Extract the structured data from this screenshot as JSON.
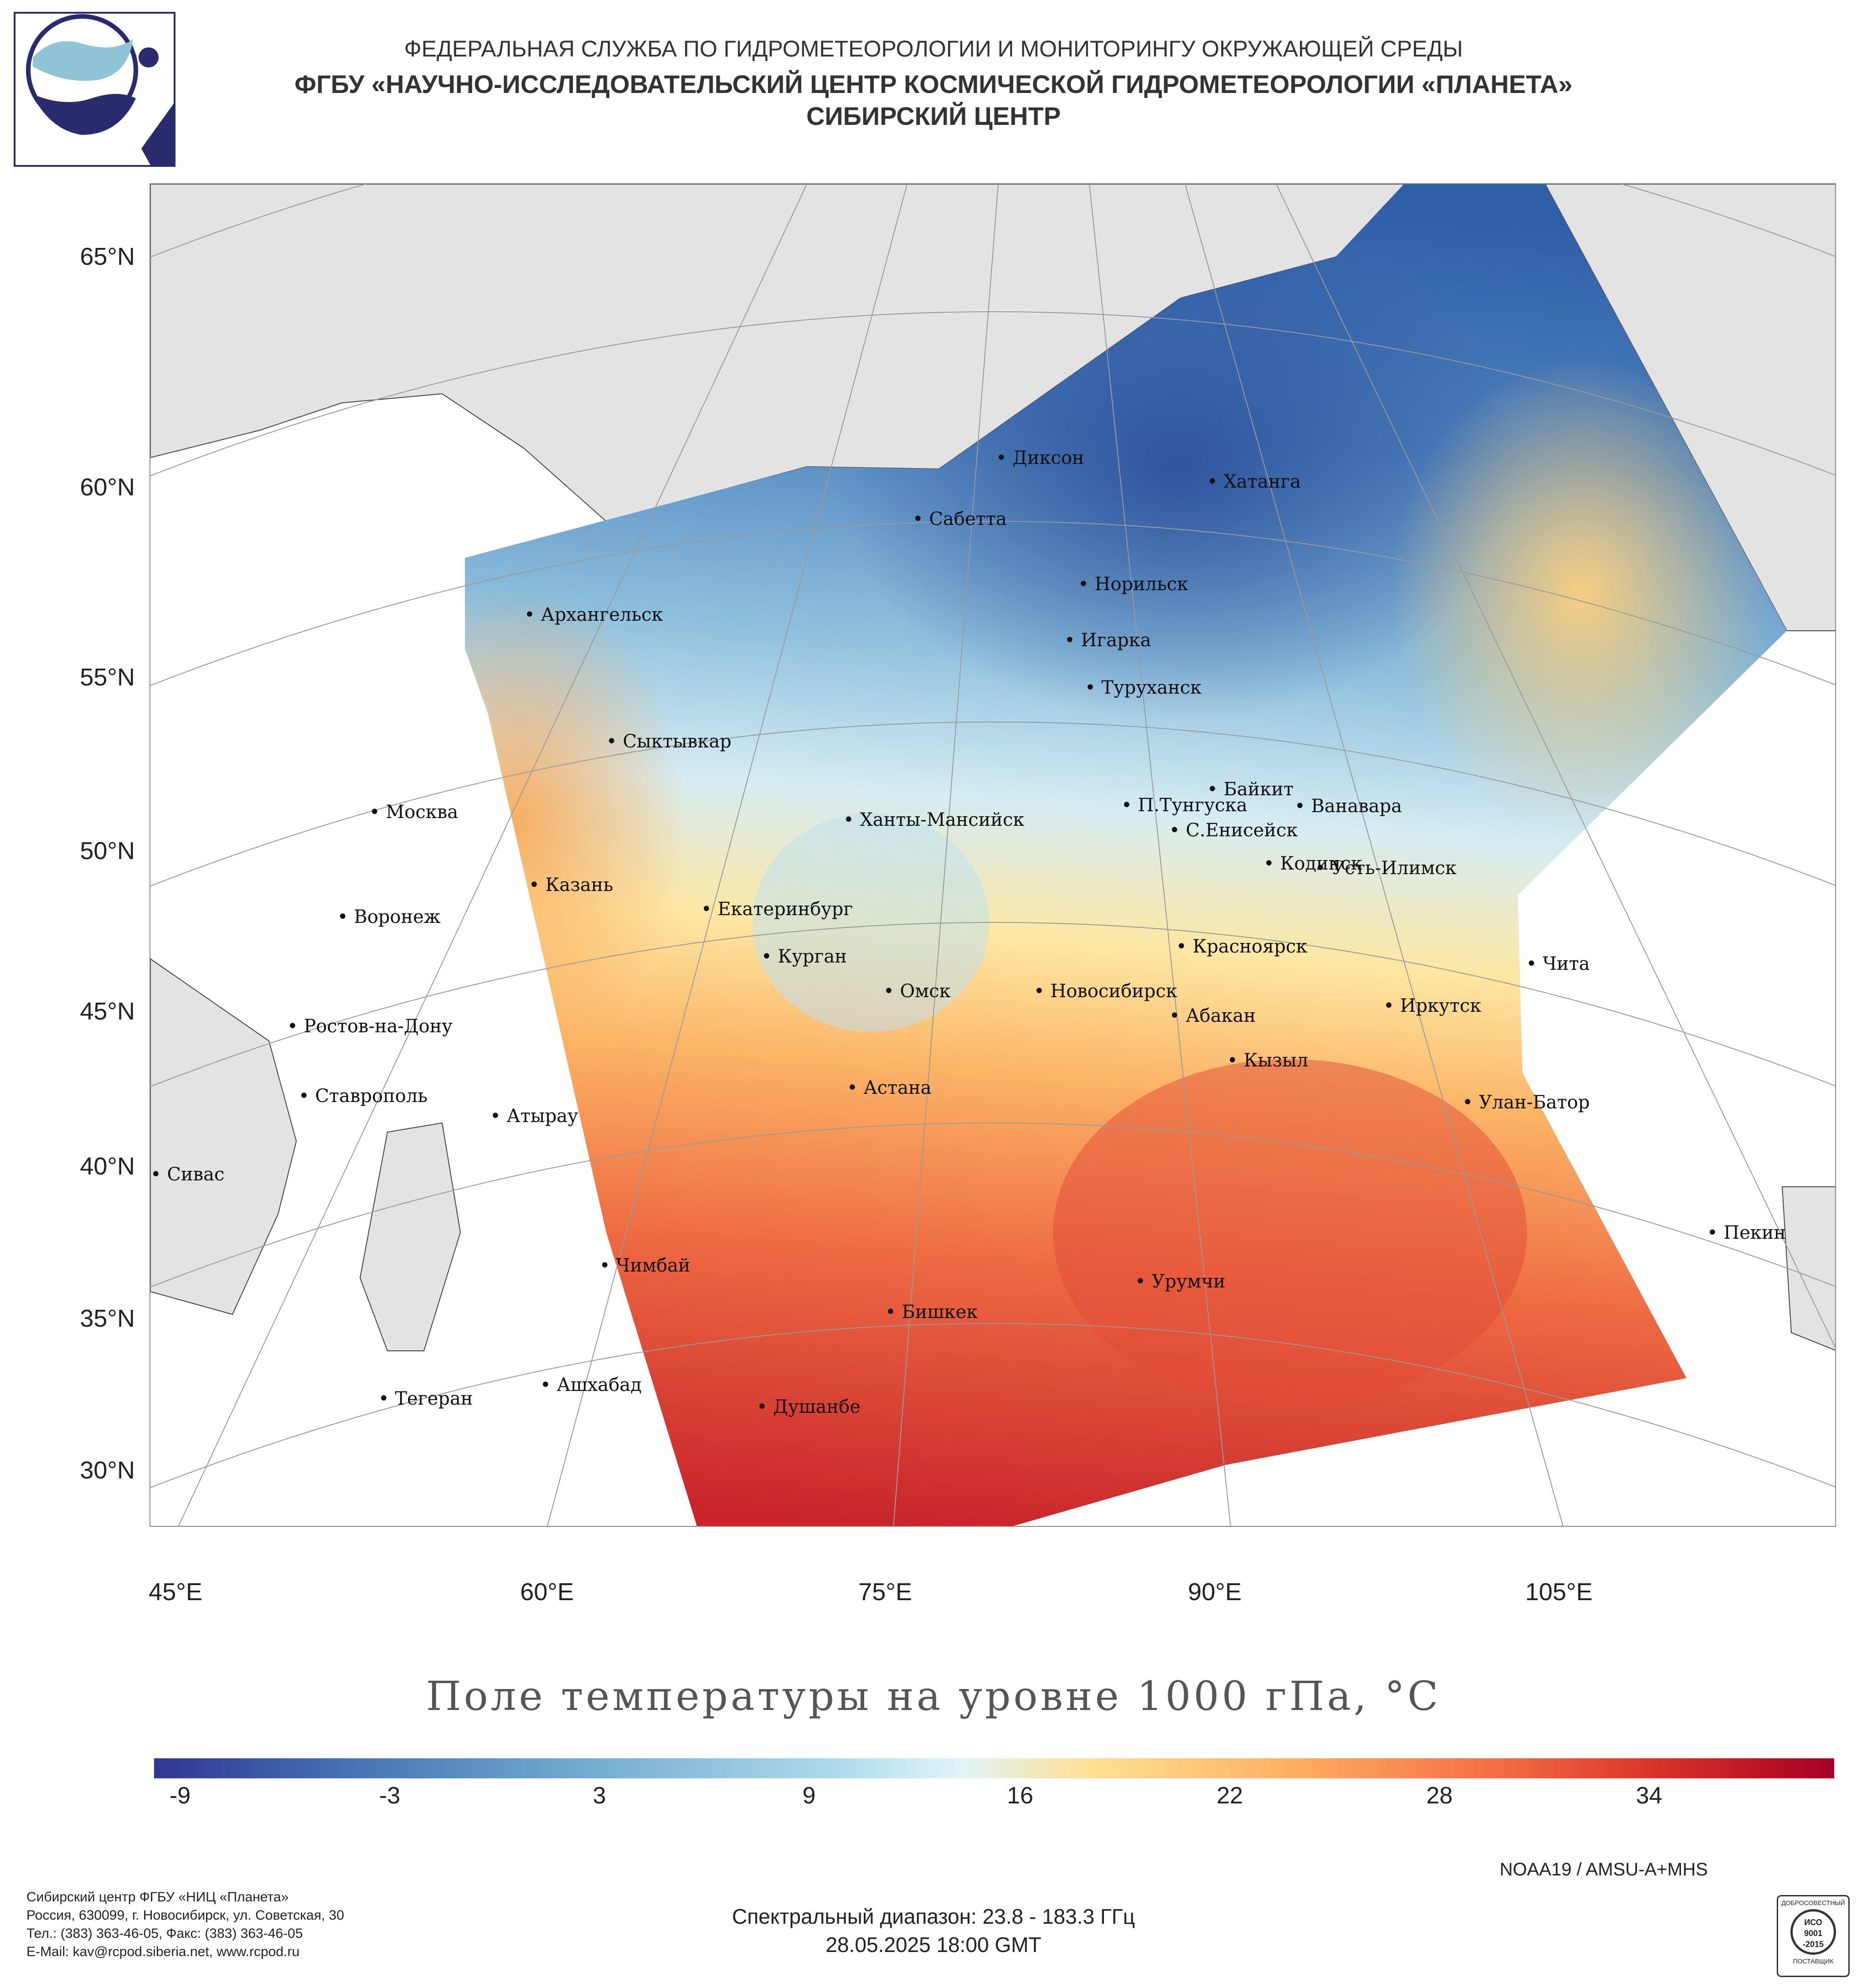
{
  "header": {
    "line1": "ФЕДЕРАЛЬНАЯ СЛУЖБА ПО ГИДРОМЕТЕОРОЛОГИИ И МОНИТОРИНГУ ОКРУЖАЮЩЕЙ СРЕДЫ",
    "line2": "ФГБУ «НАУЧНО-ИССЛЕДОВАТЕЛЬСКИЙ ЦЕНТР КОСМИЧЕСКОЙ ГИДРОМЕТЕОРОЛОГИИ «ПЛАНЕТА»",
    "line3": "СИБИРСКИЙ ЦЕНТР"
  },
  "lat_labels": [
    "65°N",
    "60°N",
    "55°N",
    "50°N",
    "45°N",
    "40°N",
    "35°N",
    "30°N"
  ],
  "lon_labels": [
    "45°E",
    "60°E",
    "75°E",
    "90°E",
    "105°E"
  ],
  "cities": [
    "Диксон",
    "Хатанга",
    "Сабетта",
    "Норильск",
    "Архангельск",
    "Игарка",
    "Туруханск",
    "Сыктывкар",
    "Байкит",
    "Москва",
    "П.Тунгуска",
    "Ванавара",
    "Ханты-Мансийск",
    "С.Енисейск",
    "Кодинск",
    "Усть-Илимск",
    "Казань",
    "Екатеринбург",
    "Воронеж",
    "Красноярск",
    "Курган",
    "Чита",
    "Омск",
    "Новосибирск",
    "Ростов-на-Дону",
    "Абакан",
    "Иркутск",
    "Кызыл",
    "Ставрополь",
    "Астана",
    "Улан-Батор",
    "Атырау",
    "Сивас",
    "Пекин",
    "Чимбай",
    "Урумчи",
    "Бишкек",
    "Ашхабад",
    "Тегеран",
    "Душанбе"
  ],
  "title": "Поле температуры на уровне 1000 гПа, °С",
  "colorbar": {
    "ticks": [
      "-9",
      "-3",
      "3",
      "9",
      "16",
      "22",
      "28",
      "34"
    ],
    "colors": [
      "#313695",
      "#4575b4",
      "#74add1",
      "#abd9e9",
      "#e0f3f8",
      "#fee090",
      "#fdae61",
      "#f46d43",
      "#d73027",
      "#a50026"
    ]
  },
  "satellite": "NOAA19 / AMSU-A+MHS",
  "spectral": "Спектральный диапазон: 23.8 - 183.3 ГГц",
  "datetime": "28.05.2025 18:00 GMT",
  "address": {
    "line1": "Сибирский центр ФГБУ «НИЦ «Планета»",
    "line2": "Россия, 630099, г. Новосибирск, ул. Советская, 30",
    "line3": "Тел.: (383) 363-46-05, Факс: (383) 363-46-05",
    "line4": "E-Mail: kav@rcpod.siberia.net, www.rcpod.ru"
  },
  "iso_badge": {
    "top": "ДОБРОСОВЕСТНЫЙ",
    "line1": "ИСО",
    "line2": "9001",
    "line3": "-2015",
    "bottom": "ПОСТАВЩИК"
  }
}
